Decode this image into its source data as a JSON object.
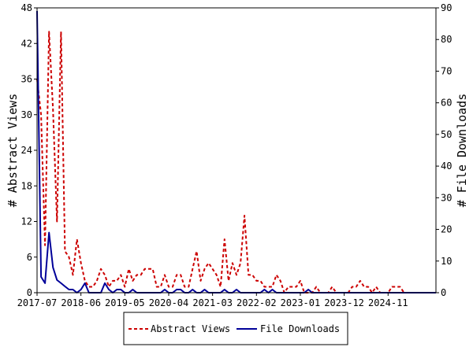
{
  "chart_data": {
    "type": "line",
    "title": "",
    "x_tick_labels": [
      "2017-07",
      "2018-06",
      "2019-05",
      "2020-04",
      "2021-03",
      "2022-02",
      "2023-01",
      "2023-12",
      "2024-11"
    ],
    "left_axis": {
      "label": "# Abstract Views",
      "ylim": [
        0,
        48
      ],
      "ticks": [
        "0",
        "6",
        "12",
        "18",
        "24",
        "30",
        "36",
        "42",
        "48"
      ]
    },
    "right_axis": {
      "label": "# File Downloads",
      "ylim": [
        0,
        90
      ],
      "ticks": [
        "0",
        "10",
        "20",
        "30",
        "40",
        "50",
        "60",
        "70",
        "80",
        "90"
      ]
    },
    "x_range_months": [
      0,
      100
    ],
    "series": [
      {
        "name": "Abstract Views",
        "axis": "left",
        "color": "#cc0000",
        "style": "dashed",
        "values": [
          36,
          30,
          8,
          44,
          31,
          12,
          44,
          7,
          6,
          3,
          9,
          5,
          2,
          1,
          1,
          2,
          4,
          3,
          1,
          2,
          2,
          3,
          1,
          4,
          2,
          3,
          3,
          4,
          4,
          4,
          1,
          1,
          3,
          1,
          1,
          3,
          3,
          1,
          1,
          4,
          7,
          2,
          4,
          5,
          4,
          3,
          1,
          9,
          2,
          5,
          3,
          5,
          13,
          3,
          3,
          2,
          2,
          1,
          1,
          1,
          3,
          2,
          0,
          1,
          1,
          1,
          2,
          0,
          0,
          0,
          1,
          0,
          0,
          0,
          1,
          0,
          0,
          0,
          0,
          1,
          1,
          2,
          1,
          1,
          0,
          1,
          0,
          0,
          0,
          1,
          1,
          1,
          0,
          0,
          0,
          0,
          0,
          0,
          0,
          0,
          0
        ]
      },
      {
        "name": "File Downloads",
        "axis": "right",
        "color": "#000099",
        "style": "solid",
        "values": [
          89,
          5,
          3,
          19,
          8,
          4,
          3,
          2,
          1,
          1,
          0,
          1,
          3,
          0,
          0,
          0,
          0,
          3,
          1,
          0,
          1,
          1,
          0,
          0,
          1,
          0,
          0,
          0,
          0,
          0,
          0,
          0,
          1,
          0,
          0,
          1,
          1,
          0,
          0,
          1,
          0,
          0,
          1,
          0,
          0,
          0,
          0,
          1,
          0,
          0,
          1,
          0,
          0,
          0,
          0,
          0,
          0,
          1,
          0,
          1,
          0,
          0,
          0,
          0,
          0,
          0,
          0,
          0,
          1,
          0,
          0,
          0,
          0,
          0,
          0,
          0,
          0,
          0,
          0,
          0,
          0,
          0,
          0,
          0,
          0,
          0,
          0,
          0,
          0,
          0,
          0,
          0,
          0,
          0,
          0,
          0,
          0,
          0,
          0,
          0,
          0
        ]
      }
    ],
    "grid": false,
    "legend": {
      "placement": "bottom-center",
      "entries": [
        "Abstract Views",
        "File Downloads"
      ]
    }
  }
}
